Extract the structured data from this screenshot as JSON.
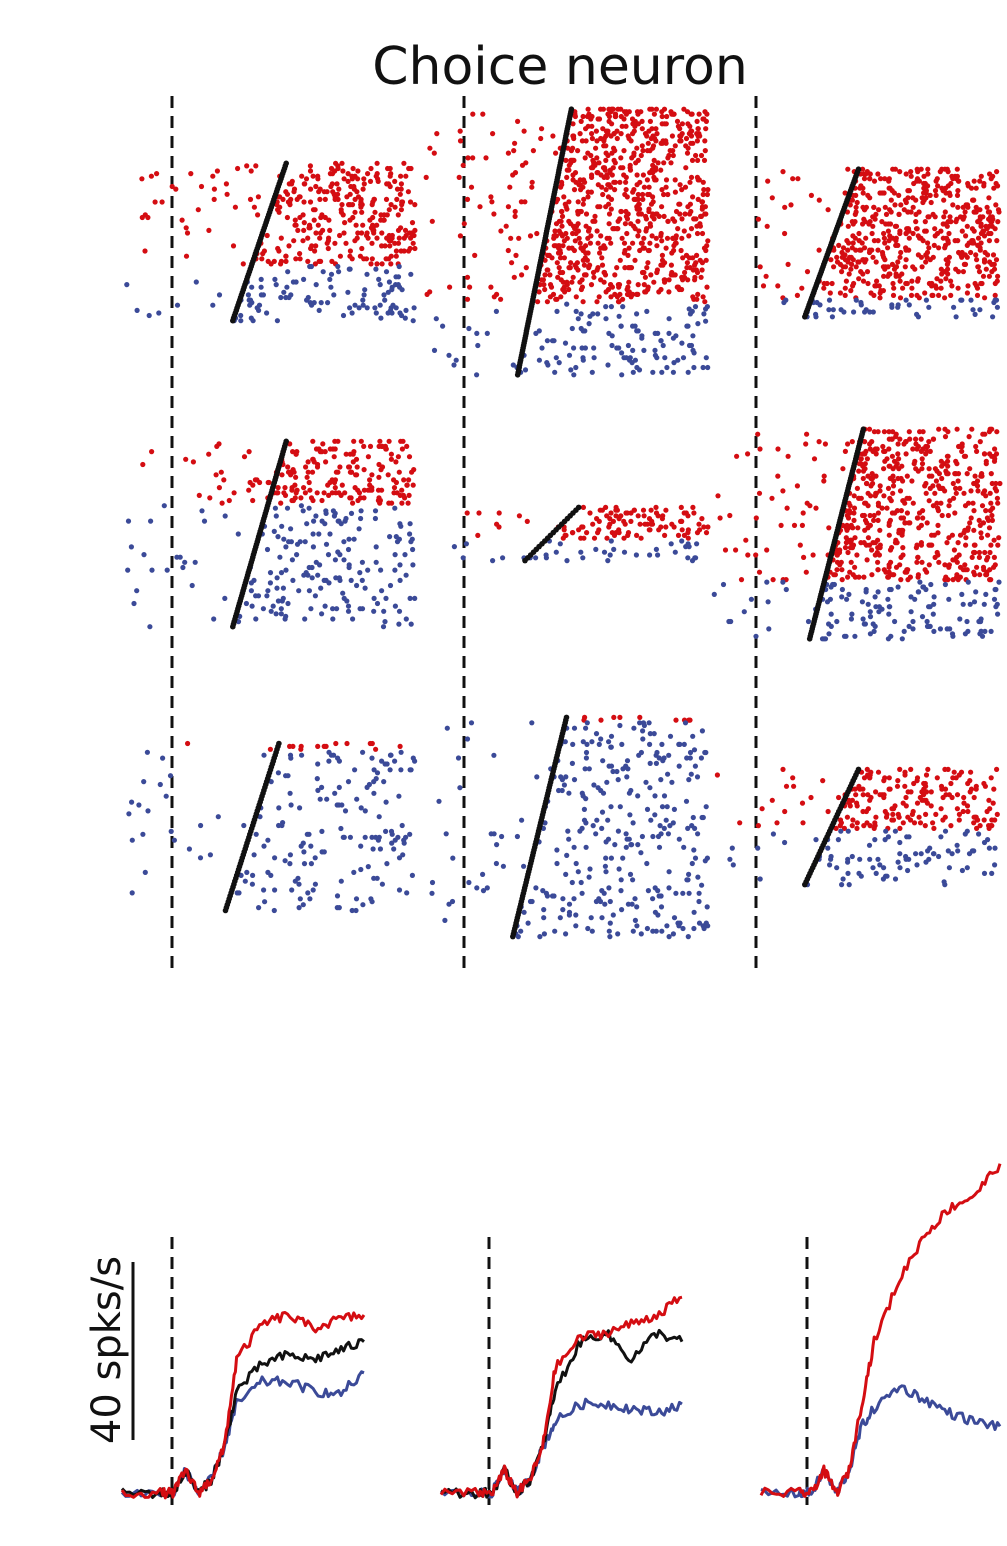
{
  "title": "Choice neuron",
  "colors": {
    "red": "#d40d12",
    "blue": "#3b4a98",
    "black": "#111111"
  },
  "scale_bar": {
    "label": "40 spks/s",
    "value": 40,
    "unit": "spks/s"
  },
  "chart_data": {
    "type": "scatter",
    "title": "Choice neuron",
    "raster_panels": [
      {
        "id": "r1c1",
        "red_trials": 40,
        "blue_trials": 22,
        "red_density": 0.55,
        "blue_density": 0.22,
        "response_onset": 0.25,
        "black_span": 0.4
      },
      {
        "id": "r1c2",
        "red_trials": 80,
        "blue_trials": 30,
        "red_density": 0.6,
        "blue_density": 0.22,
        "response_onset": 0.22,
        "black_span": 0.4
      },
      {
        "id": "r1c3",
        "red_trials": 55,
        "blue_trials": 8,
        "red_density": 0.6,
        "blue_density": 0.3,
        "response_onset": 0.2,
        "black_span": 0.4
      },
      {
        "id": "r2c1",
        "red_trials": 25,
        "blue_trials": 48,
        "red_density": 0.6,
        "blue_density": 0.22,
        "response_onset": 0.25,
        "black_span": 0.4
      },
      {
        "id": "r2c2",
        "red_trials": 12,
        "blue_trials": 8,
        "red_density": 0.65,
        "blue_density": 0.25,
        "response_onset": 0.25,
        "black_span": 0.4
      },
      {
        "id": "r2c3",
        "red_trials": 62,
        "blue_trials": 24,
        "red_density": 0.6,
        "blue_density": 0.3,
        "response_onset": 0.22,
        "black_span": 0.4
      },
      {
        "id": "r3c1",
        "red_trials": 3,
        "blue_trials": 55,
        "red_density": 0.35,
        "blue_density": 0.2,
        "response_onset": 0.22,
        "black_span": 0.4
      },
      {
        "id": "r3c2",
        "red_trials": 2,
        "blue_trials": 80,
        "red_density": 0.5,
        "blue_density": 0.22,
        "response_onset": 0.2,
        "black_span": 0.4
      },
      {
        "id": "r3c3",
        "red_trials": 22,
        "blue_trials": 20,
        "red_density": 0.6,
        "blue_density": 0.25,
        "response_onset": 0.2,
        "black_span": 0.4
      }
    ],
    "psth_panels": [
      {
        "id": "psth1",
        "t": [
          -0.3,
          0,
          0.1,
          0.2,
          0.3,
          0.4,
          0.5,
          0.6,
          0.8,
          1.0,
          1.2,
          1.4,
          1.6
        ],
        "red": [
          0,
          0,
          0,
          5,
          0,
          3,
          10,
          30,
          38,
          40,
          37,
          39,
          40
        ],
        "black": [
          0,
          0,
          0,
          5,
          0,
          3,
          10,
          23,
          29,
          31,
          30,
          32,
          34
        ],
        "blue": [
          0,
          0,
          0,
          5,
          0,
          3,
          10,
          20,
          25,
          25,
          23,
          22,
          27
        ]
      },
      {
        "id": "psth2",
        "t": [
          -0.3,
          0,
          0.1,
          0.2,
          0.3,
          0.4,
          0.5,
          0.6,
          0.8,
          1.0,
          1.2,
          1.4,
          1.6
        ],
        "red": [
          0,
          0,
          0,
          5,
          0,
          3,
          10,
          28,
          35,
          36,
          38,
          40,
          44
        ],
        "black": [
          0,
          0,
          0,
          5,
          0,
          3,
          10,
          23,
          34,
          36,
          30,
          36,
          34
        ],
        "blue": [
          0,
          0,
          0,
          5,
          0,
          3,
          10,
          16,
          20,
          20,
          19,
          18,
          20
        ]
      },
      {
        "id": "psth3",
        "t": [
          -0.3,
          0,
          0.1,
          0.2,
          0.3,
          0.4,
          0.5,
          0.6,
          0.8,
          1.0,
          1.2,
          1.4,
          1.6
        ],
        "red": [
          0,
          0,
          0,
          5,
          0,
          5,
          20,
          34,
          48,
          58,
          64,
          67,
          74
        ],
        "blue": [
          0,
          0,
          0,
          5,
          0,
          5,
          15,
          19,
          24,
          21,
          18,
          16,
          15
        ]
      }
    ]
  }
}
